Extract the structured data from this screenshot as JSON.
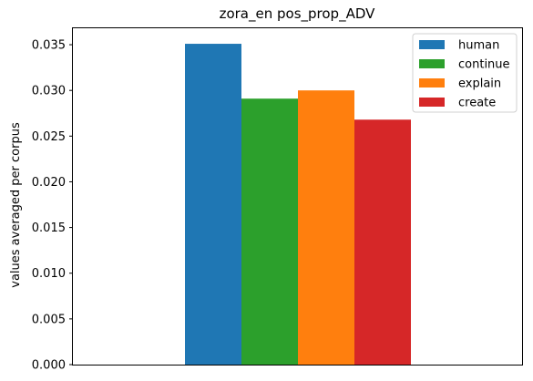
{
  "chart_data": {
    "type": "bar",
    "title": "zora_en pos_prop_ADV",
    "xlabel": "",
    "ylabel": "values averaged per corpus",
    "ylim": [
      0,
      0.0368
    ],
    "yticks": [
      "0.000",
      "0.005",
      "0.010",
      "0.015",
      "0.020",
      "0.025",
      "0.030",
      "0.035"
    ],
    "ytick_values": [
      0,
      0.005,
      0.01,
      0.015,
      0.02,
      0.025,
      0.03,
      0.035
    ],
    "grid": false,
    "legend_position": "top-right",
    "series": [
      {
        "name": "human",
        "value": 0.0351,
        "color": "#1f77b4"
      },
      {
        "name": "continue",
        "value": 0.0291,
        "color": "#2ca02c"
      },
      {
        "name": "explain",
        "value": 0.03,
        "color": "#ff7f0e"
      },
      {
        "name": "create",
        "value": 0.0268,
        "color": "#d62728"
      }
    ]
  }
}
